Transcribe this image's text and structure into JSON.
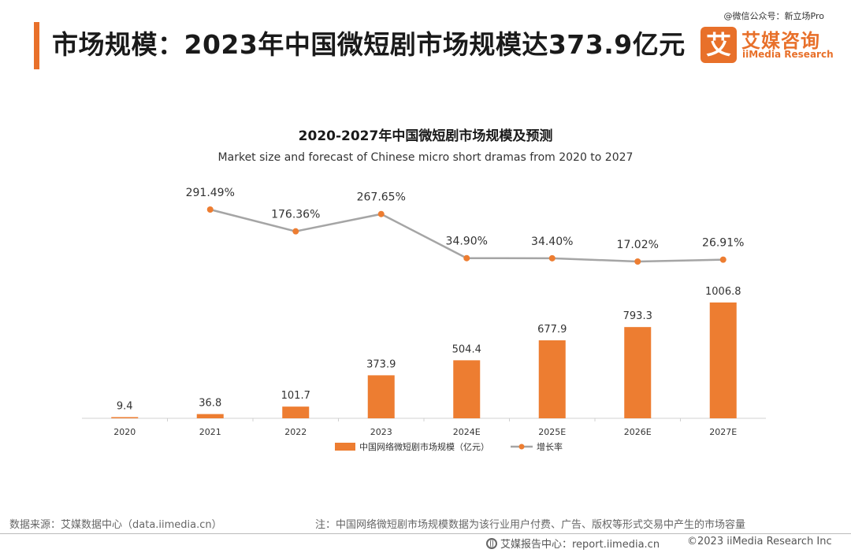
{
  "header": {
    "title": "市场规模：2023年中国微短剧市场规模达373.9亿元",
    "watermark": "@微信公众号：新立场Pro"
  },
  "logo": {
    "badge": "艾",
    "name": "艾媒咨询",
    "sub": "iiMedia Research"
  },
  "chart_data": {
    "type": "bar",
    "title": "2020-2027年中国微短剧市场规模及预测",
    "subtitle": "Market size and forecast of Chinese micro short dramas from 2020 to 2027",
    "categories": [
      "2020",
      "2021",
      "2022",
      "2023",
      "2024E",
      "2025E",
      "2026E",
      "2027E"
    ],
    "series": [
      {
        "name": "中国网络微短剧市场规模（亿元）",
        "type": "bar",
        "color": "#ed7d31",
        "values": [
          9.4,
          36.8,
          101.7,
          373.9,
          504.4,
          677.9,
          793.3,
          1006.8
        ],
        "labels": [
          "9.4",
          "36.8",
          "101.7",
          "373.9",
          "504.4",
          "677.9",
          "793.3",
          "1006.8"
        ]
      },
      {
        "name": "增长率",
        "type": "line",
        "color": "#a5a5a5",
        "marker_color": "#ed7d31",
        "values": [
          null,
          291.49,
          176.36,
          267.65,
          34.9,
          34.4,
          17.02,
          26.91
        ],
        "labels": [
          "",
          "291.49%",
          "176.36%",
          "267.65%",
          "34.90%",
          "34.40%",
          "17.02%",
          "26.91%"
        ]
      }
    ],
    "legend_position": "bottom",
    "grid": false
  },
  "footer": {
    "source": "数据来源：艾媒数据中心（data.iimedia.cn）",
    "note": "注：中国网络微短剧市场规模数据为该行业用户付费、广告、版权等形式交易中产生的市场容量",
    "report": "艾媒报告中心：report.iimedia.cn",
    "copyright": "©2023  iiMedia Research Inc"
  }
}
